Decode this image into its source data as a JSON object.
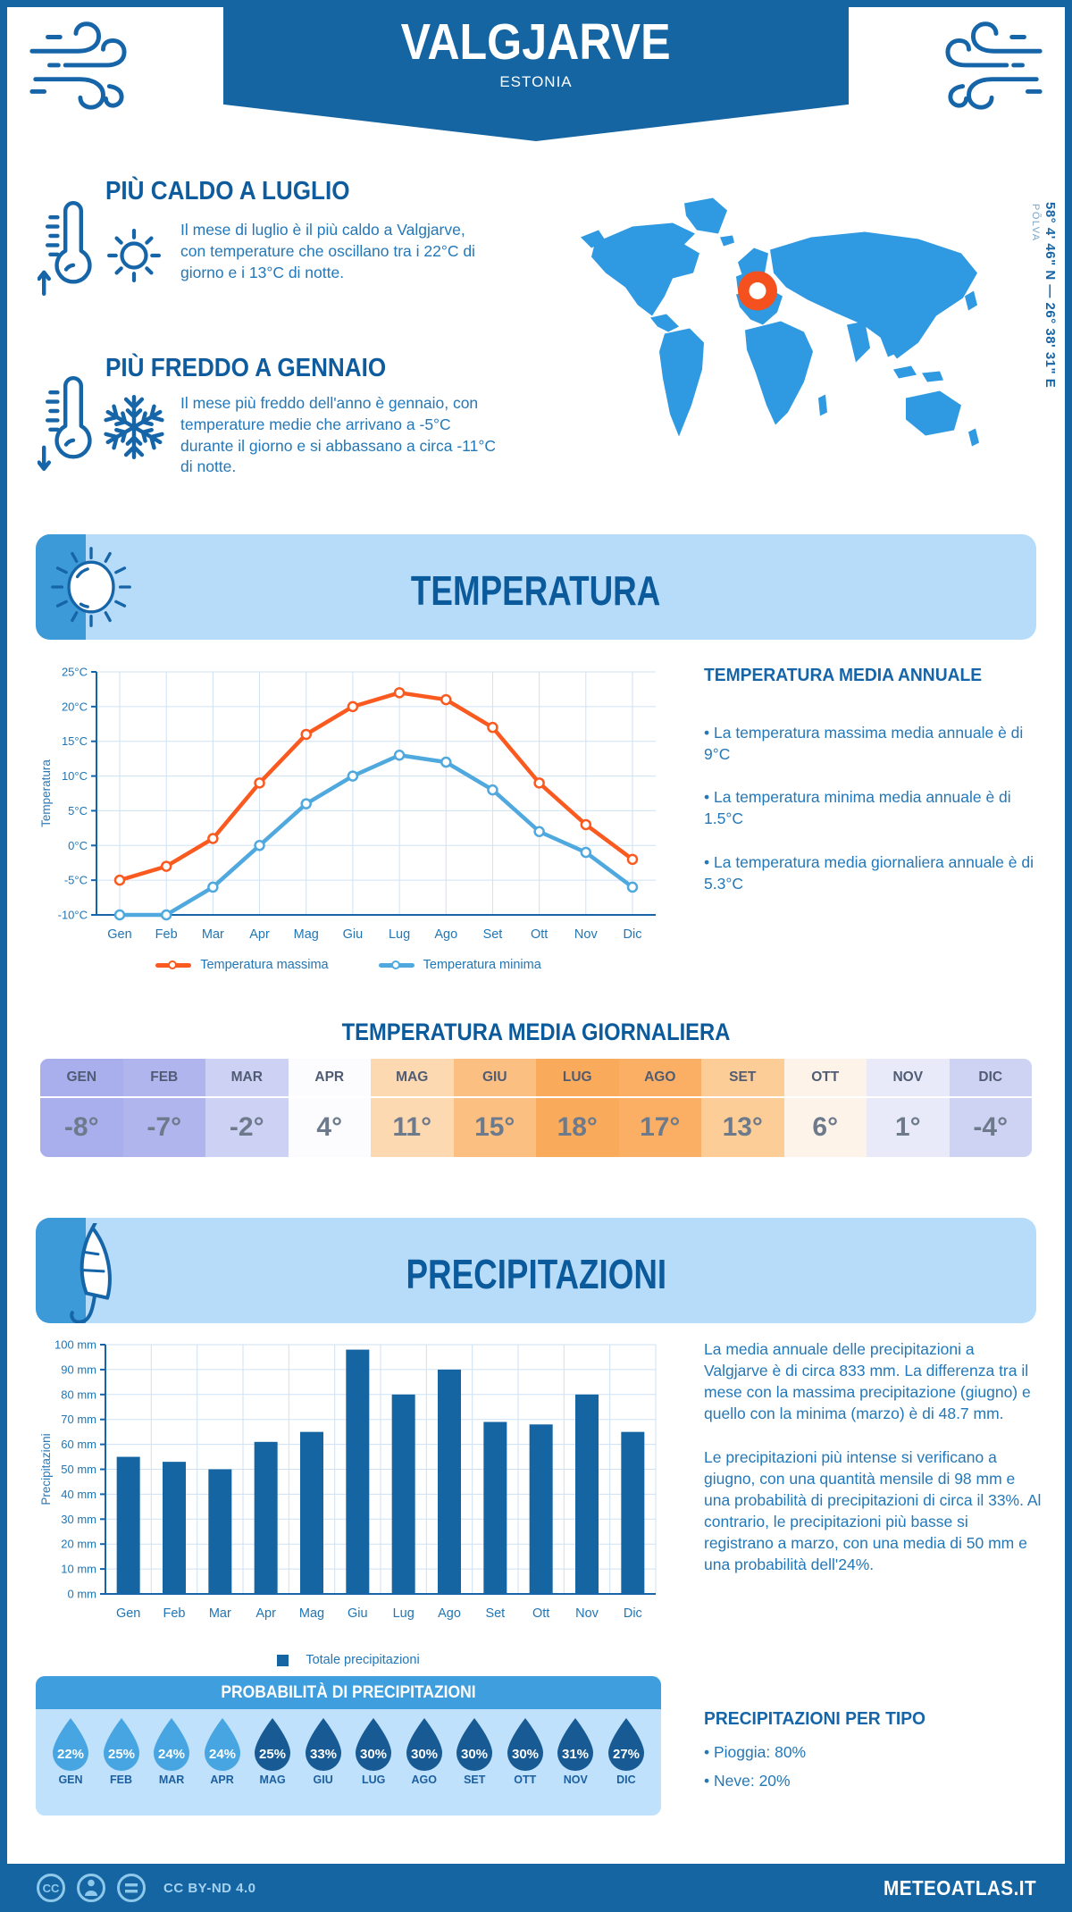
{
  "header": {
    "location": "VALGJARVE",
    "country": "ESTONIA",
    "coordinates": "58° 4' 46\" N — 26° 38' 31\" E",
    "region": "PÕLVA"
  },
  "highlights": {
    "warm": {
      "title": "PIÙ CALDO A LUGLIO",
      "text": "Il mese di luglio è il più caldo a Valgjarve, con temperature che oscillano tra i 22°C di giorno e i 13°C di notte."
    },
    "cold": {
      "title": "PIÙ FREDDO A GENNAIO",
      "text": "Il mese più freddo dell'anno è gennaio, con temperature medie che arrivano a -5°C durante il giorno e si abbassano a circa -11°C di notte."
    }
  },
  "temperature": {
    "banner_title": "TEMPERATURA",
    "annual": {
      "title": "TEMPERATURA MEDIA ANNUALE",
      "bullets": [
        "• La temperatura massima media annuale è di 9°C",
        "• La temperatura minima media annuale è di 1.5°C",
        "• La temperatura media giornaliera annuale è di 5.3°C"
      ]
    },
    "daily_title": "TEMPERATURA MEDIA GIORNALIERA"
  },
  "monthly_table": {
    "months": [
      "GEN",
      "FEB",
      "MAR",
      "APR",
      "MAG",
      "GIU",
      "LUG",
      "AGO",
      "SET",
      "OTT",
      "NOV",
      "DIC"
    ],
    "values": [
      "-8°",
      "-7°",
      "-2°",
      "4°",
      "11°",
      "15°",
      "18°",
      "17°",
      "13°",
      "6°",
      "1°",
      "-4°"
    ],
    "colors": [
      "#a9aeec",
      "#b1b5ee",
      "#cdd1f4",
      "#fcfcfe",
      "#fdd9b2",
      "#fcbf82",
      "#f9aa5b",
      "#faaf64",
      "#fccd96",
      "#fdf3e9",
      "#e8eaf9",
      "#ced2f3"
    ]
  },
  "precipitation": {
    "banner_title": "PRECIPITAZIONI",
    "paragraphs": [
      "La media annuale delle precipitazioni a Valgjarve è di circa 833 mm. La differenza tra il mese con la massima precipitazione (giugno) e quello con la minima (marzo) è di 48.7 mm.",
      "Le precipitazioni più intense si verificano a giugno, con una quantità mensile di 98 mm e una probabilità di precipitazioni di circa il 33%. Al contrario, le precipitazioni più basse si registrano a marzo, con una media di 50 mm e una probabilità dell'24%."
    ],
    "legend": "Totale precipitazioni",
    "probability": {
      "title": "PROBABILITÀ DI PRECIPITAZIONI",
      "months": [
        "GEN",
        "FEB",
        "MAR",
        "APR",
        "MAG",
        "GIU",
        "LUG",
        "AGO",
        "SET",
        "OTT",
        "NOV",
        "DIC"
      ],
      "values": [
        "22%",
        "25%",
        "24%",
        "24%",
        "25%",
        "33%",
        "30%",
        "30%",
        "30%",
        "30%",
        "31%",
        "27%"
      ],
      "drop_colors": [
        "#47a5e1",
        "#47a5e1",
        "#47a5e1",
        "#47a5e1",
        "#175a94",
        "#175a94",
        "#175a94",
        "#175a94",
        "#175a94",
        "#175a94",
        "#175a94",
        "#175a94"
      ]
    },
    "types": {
      "title": "PRECIPITAZIONI PER TIPO",
      "bullets": [
        "• Pioggia: 80%",
        "• Neve: 20%"
      ]
    }
  },
  "chart_data": [
    {
      "type": "line",
      "title": "Temperatura",
      "categories": [
        "Gen",
        "Feb",
        "Mar",
        "Apr",
        "Mag",
        "Giu",
        "Lug",
        "Ago",
        "Set",
        "Ott",
        "Nov",
        "Dic"
      ],
      "series": [
        {
          "name": "Temperatura massima",
          "color": "#fa5a1f",
          "values": [
            -5,
            -3,
            1,
            9,
            16,
            20,
            22,
            21,
            17,
            9,
            3,
            -2
          ]
        },
        {
          "name": "Temperatura minima",
          "color": "#4fa8de",
          "values": [
            -10,
            -10,
            -6,
            0,
            6,
            10,
            13,
            12,
            8,
            2,
            -1,
            -6
          ]
        }
      ],
      "xlabel": "",
      "ylabel": "Temperatura",
      "ylim": [
        -10,
        25
      ],
      "ytick_step": 5,
      "ytick_suffix": "°C",
      "grid": true,
      "legend_position": "bottom"
    },
    {
      "type": "bar",
      "title": "Precipitazioni",
      "categories": [
        "Gen",
        "Feb",
        "Mar",
        "Apr",
        "Mag",
        "Giu",
        "Lug",
        "Ago",
        "Set",
        "Ott",
        "Nov",
        "Dic"
      ],
      "values": [
        55,
        53,
        50,
        61,
        65,
        98,
        80,
        90,
        69,
        68,
        80,
        65
      ],
      "xlabel": "",
      "ylabel": "Precipitazioni",
      "ylim": [
        0,
        100
      ],
      "ytick_step": 10,
      "ytick_suffix": " mm",
      "bar_color": "#1565a3",
      "grid": true,
      "legend": "Totale precipitazioni"
    }
  ],
  "colors": {
    "primary_blue": "#1565a3",
    "section_bg": "#b7dcfa",
    "section_icon_bg": "#3d9ad8",
    "map_blue": "#2f99e1",
    "marker_orange": "#f4511e",
    "body_text": "#2478b8",
    "heading_blue": "#0b5a9b"
  },
  "footer": {
    "license": "CC BY-ND 4.0",
    "site": "METEOATLAS.IT"
  }
}
